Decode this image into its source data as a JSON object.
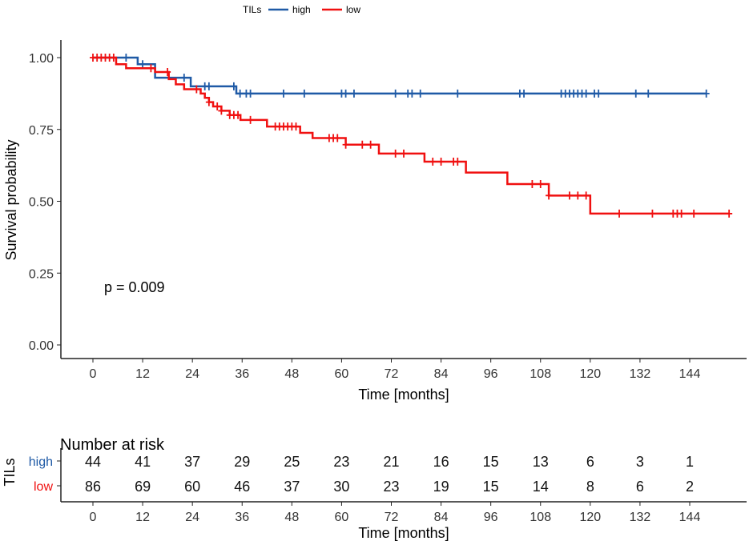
{
  "chart_data": {
    "type": "line",
    "subtype": "kaplan-meier",
    "legend": {
      "title": "TILs",
      "position": "top",
      "entries": [
        "high",
        "low"
      ]
    },
    "xlabel": "Time [months]",
    "ylabel": "Survival probability",
    "xlim": [
      0,
      155
    ],
    "ylim": [
      0,
      1
    ],
    "xticks": [
      0,
      12,
      24,
      36,
      48,
      60,
      72,
      84,
      96,
      108,
      120,
      132,
      144
    ],
    "yticks": [
      "0.00",
      "0.25",
      "0.50",
      "0.75",
      "1.00"
    ],
    "grid": false,
    "annotation": "p = 0.009",
    "series": [
      {
        "name": "high",
        "color": "#1f5aa6",
        "steps": [
          [
            0,
            1.0
          ],
          [
            10.8,
            0.977
          ],
          [
            15,
            0.93
          ],
          [
            23.6,
            0.9
          ],
          [
            34.6,
            0.875
          ]
        ],
        "end": 148,
        "censored": [
          8,
          12,
          22,
          27,
          28,
          34,
          35.5,
          37,
          38,
          46,
          51,
          60,
          61,
          63,
          73,
          76,
          77,
          79,
          88,
          103,
          104,
          113,
          114,
          115,
          116,
          117,
          118,
          119,
          121,
          122,
          131,
          134,
          148
        ]
      },
      {
        "name": "low",
        "color": "#f01010",
        "steps": [
          [
            0,
            1.0
          ],
          [
            5.6,
            0.977
          ],
          [
            8,
            0.963
          ],
          [
            15,
            0.95
          ],
          [
            18.3,
            0.925
          ],
          [
            20,
            0.907
          ],
          [
            22,
            0.89
          ],
          [
            26,
            0.875
          ],
          [
            27,
            0.86
          ],
          [
            28,
            0.845
          ],
          [
            29,
            0.83
          ],
          [
            31,
            0.815
          ],
          [
            33,
            0.8
          ],
          [
            35.6,
            0.783
          ],
          [
            42,
            0.76
          ],
          [
            50,
            0.738
          ],
          [
            53,
            0.72
          ],
          [
            61,
            0.697
          ],
          [
            69,
            0.666
          ],
          [
            80,
            0.638
          ],
          [
            90,
            0.6
          ],
          [
            100,
            0.56
          ],
          [
            110,
            0.52
          ],
          [
            120,
            0.457
          ]
        ],
        "end": 153.5,
        "censored": [
          0,
          1,
          2,
          3,
          4,
          5,
          14,
          18,
          25,
          28,
          30,
          31,
          33,
          34,
          35,
          38,
          44,
          45,
          46,
          47,
          48,
          49,
          57,
          58,
          59,
          61,
          65,
          67,
          73,
          75,
          82,
          84,
          87,
          88,
          106,
          108,
          110,
          115,
          117,
          119,
          127,
          135,
          140,
          141,
          142,
          145,
          153.5
        ]
      }
    ],
    "risk_table": {
      "title": "Number at risk",
      "strata_label": "TILs",
      "xlabel": "Time [months]",
      "times": [
        0,
        12,
        24,
        36,
        48,
        60,
        72,
        84,
        96,
        108,
        120,
        132,
        144
      ],
      "rows": [
        {
          "name": "high",
          "color": "#1f5aa6",
          "values": [
            44,
            41,
            37,
            29,
            25,
            23,
            21,
            16,
            15,
            13,
            6,
            3,
            1
          ]
        },
        {
          "name": "low",
          "color": "#f01010",
          "values": [
            86,
            69,
            60,
            46,
            37,
            30,
            23,
            19,
            15,
            14,
            8,
            6,
            2
          ]
        }
      ]
    }
  }
}
